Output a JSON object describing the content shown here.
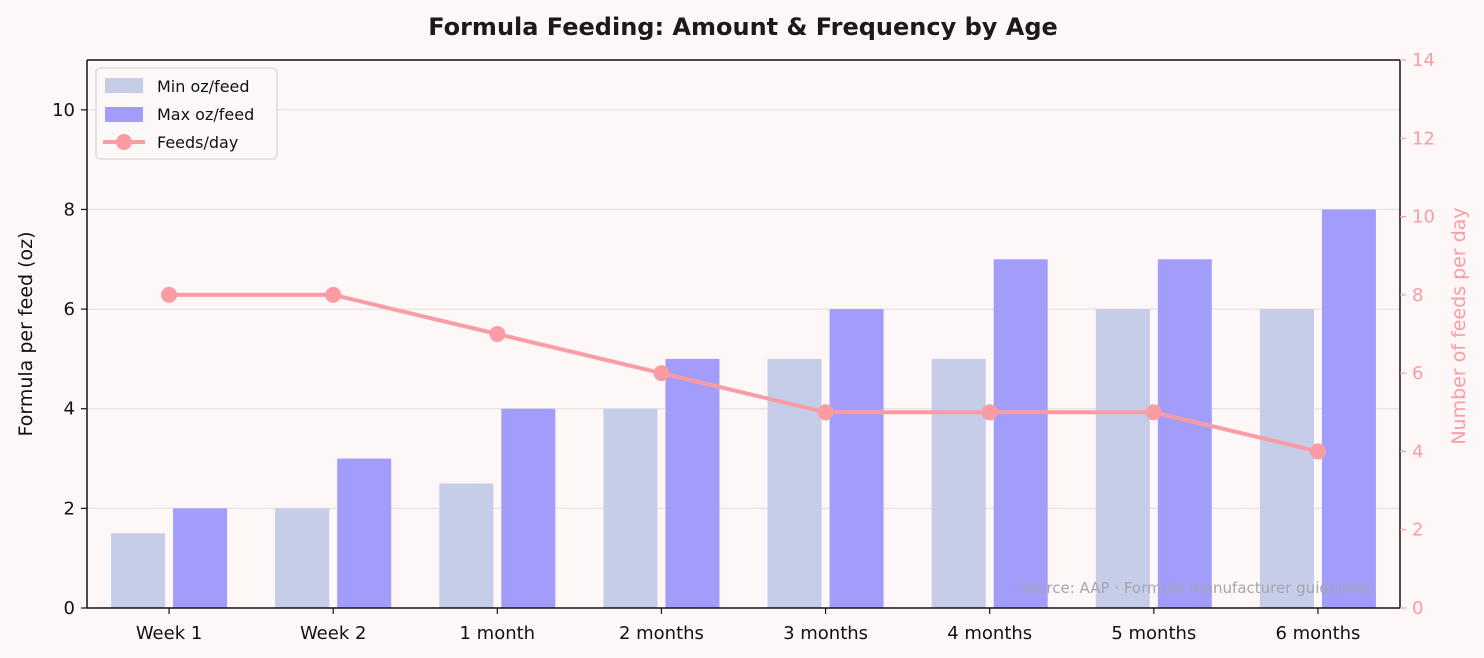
{
  "chart_data": {
    "type": "bar",
    "title": "Formula Feeding: Amount & Frequency by Age",
    "categories": [
      "Week 1",
      "Week 2",
      "1 month",
      "2 months",
      "3 months",
      "4 months",
      "5 months",
      "6 months"
    ],
    "ylabel": "Formula per feed (oz)",
    "ylabel_right": "Number of feeds per day",
    "ylim": [
      0,
      11
    ],
    "ylim_right": [
      0,
      14
    ],
    "yticks": [
      "0",
      "2",
      "4",
      "6",
      "8",
      "10"
    ],
    "yticks_right": [
      "0",
      "2",
      "4",
      "6",
      "8",
      "10",
      "12",
      "14"
    ],
    "grid": true,
    "legend_position": "top-left",
    "series": [
      {
        "name": "Min oz/feed",
        "kind": "bar",
        "axis": "left",
        "color": "#c5cde9",
        "values": [
          1.5,
          2,
          2.5,
          4,
          5,
          5,
          6,
          6
        ]
      },
      {
        "name": "Max oz/feed",
        "kind": "bar",
        "axis": "left",
        "color": "#a29dfb",
        "values": [
          2,
          3,
          4,
          5,
          6,
          7,
          7,
          8
        ]
      },
      {
        "name": "Feeds/day",
        "kind": "line",
        "axis": "right",
        "color": "#fb9ca4",
        "values": [
          8,
          8,
          7,
          6,
          5,
          5,
          5,
          4
        ]
      }
    ],
    "annotation": "Source: AAP · Formula manufacturer guidelines"
  },
  "colors": {
    "background": "#fdf7f7",
    "grid": "#e6e0e0",
    "right_axis": "#fb9ca4",
    "annotation": "#a5a5b0"
  }
}
